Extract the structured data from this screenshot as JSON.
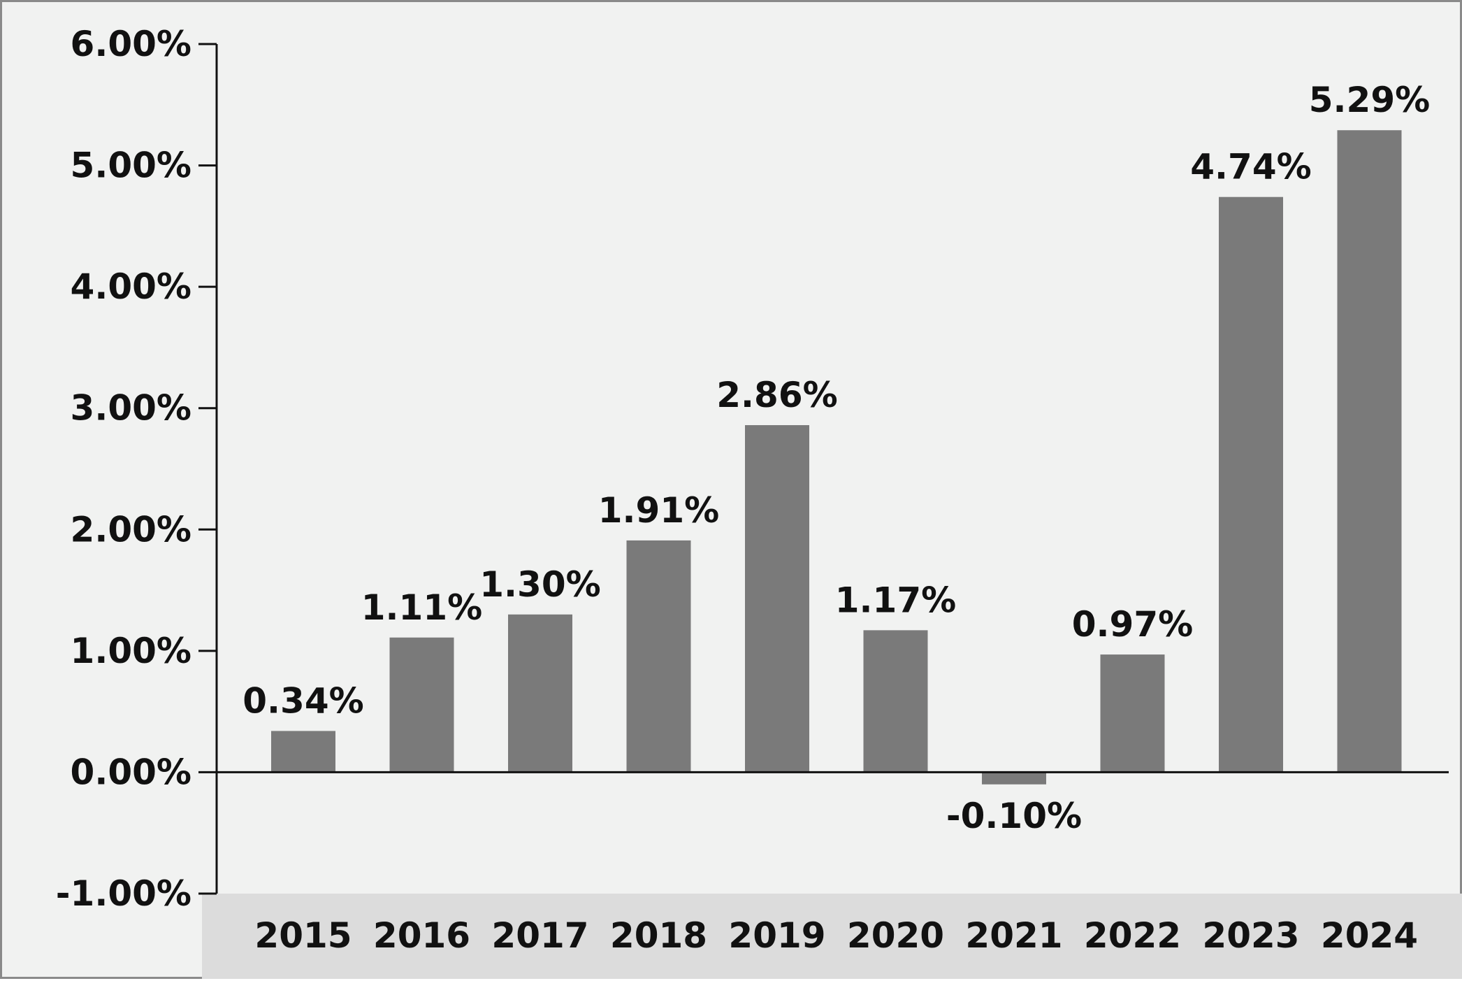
{
  "chart_data": {
    "type": "bar",
    "categories": [
      "2015",
      "2016",
      "2017",
      "2018",
      "2019",
      "2020",
      "2021",
      "2022",
      "2023",
      "2024"
    ],
    "values": [
      0.34,
      1.11,
      1.3,
      1.91,
      2.86,
      1.17,
      -0.1,
      0.97,
      4.74,
      5.29
    ],
    "value_labels": [
      "0.34%",
      "1.11%",
      "1.30%",
      "1.91%",
      "2.86%",
      "1.17%",
      "-0.10%",
      "0.97%",
      "4.74%",
      "5.29%"
    ],
    "yticks": [
      -1,
      0,
      1,
      2,
      3,
      4,
      5,
      6
    ],
    "ytick_labels": [
      "-1.00%",
      "0.00%",
      "1.00%",
      "2.00%",
      "3.00%",
      "4.00%",
      "5.00%",
      "6.00%"
    ],
    "ylim": [
      -1,
      6
    ],
    "title": "",
    "xlabel": "",
    "ylabel": "",
    "grid": false,
    "colors": {
      "bar": "#7a7a7a",
      "background": "#f1f2f1",
      "category_band": "#dcdcdc",
      "axis": "#111111"
    }
  }
}
